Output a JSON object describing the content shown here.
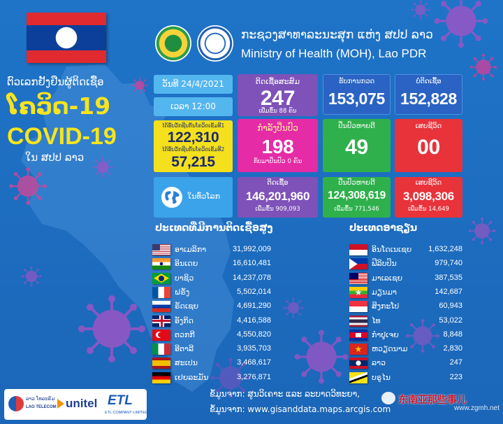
{
  "header": {
    "title_lo": "ກະຊວງສາທາລະນະສຸກ ແຫ່ງ ສປປ ລາວ",
    "title_en": "Ministry of Health (MOH), Lao PDR"
  },
  "intro": {
    "headline": "ຕົວເລກຢັ້ງຢືນຜູ້ຕິດເຊື້ອ",
    "covid_lo": "ໂຄວິດ-19",
    "covid_en": "COVID-19",
    "location": "ໃນ ສປປ ລາວ"
  },
  "report": {
    "date": "ວັນທີ 24/4/2021",
    "time": "ເວລາ 12:00"
  },
  "vaccine": {
    "dose1_label": "ໄດ້ຮັບວັກຊີນກັນໂຄວິດເຂັມທີ1",
    "dose1_value": "122,310",
    "dose2_label": "ໄດ້ຮັບວັກຊີນກັນໂຄວິດເຂັມທີ2",
    "dose2_value": "57,215"
  },
  "laos": {
    "cumulative": {
      "label": "ຕິດເຊື້ອສະສົມ",
      "value": "247",
      "note": "ເພີ່ມຂຶ້ນ 88 ຄົນ"
    },
    "treating": {
      "label": "ກຳລັງປິ່ນປົວ",
      "value": "198",
      "note": "ກັບມາປິ່ນປົວ 0 ຄົນ"
    },
    "tested": {
      "label": "ຮັບການກວດ",
      "value": "153,075"
    },
    "negative": {
      "label": "ບໍ່ຕິດເຊື້ອ",
      "value": "152,828"
    },
    "recovered": {
      "label": "ປິ່ນປົວຫາຍດີ",
      "value": "49"
    },
    "deaths": {
      "label": "ເສຍຊີວິດ",
      "value": "00"
    }
  },
  "world": {
    "label": "ໃນທົ່ວໂລກ",
    "icon": "globe-icon",
    "infected": {
      "label": "ຕິດເຊື້ອ",
      "value": "146,201,960",
      "note": "ເພີ່ມຂຶ້ນ 909,093"
    },
    "recovered": {
      "label": "ປິ່ນປົວຫາຍດີ",
      "value": "124,308,619",
      "note": "ເພີ່ມຂຶ້ນ 771,546"
    },
    "deaths": {
      "label": "ເສຍຊີວິດ",
      "value": "3,098,306",
      "note": "ເພີ່ມຂຶ້ນ 14,649"
    }
  },
  "top_countries": {
    "title": "ປະເທດທີ່ມີການຕິດເຊື້ອສູງ",
    "rows": [
      {
        "flag": "usa",
        "name": "ອາເມລິກາ",
        "value": "31,992,009"
      },
      {
        "flag": "india",
        "name": "ອິນເດຍ",
        "value": "16,610,481"
      },
      {
        "flag": "brazil",
        "name": "ບາຊິວ",
        "value": "14,237,078"
      },
      {
        "flag": "france",
        "name": "ຝຣັ່ງ",
        "value": "5,502,014"
      },
      {
        "flag": "russia",
        "name": "ຣັດເຊຍ",
        "value": "4,691,290"
      },
      {
        "flag": "uk",
        "name": "ອັງກິດ",
        "value": "4,416,588"
      },
      {
        "flag": "turkey",
        "name": "ຕວກກີ",
        "value": "4,550,820"
      },
      {
        "flag": "italy",
        "name": "ອີຕາລີ",
        "value": "3,935,703"
      },
      {
        "flag": "spain",
        "name": "ສະເປນ",
        "value": "3,468,617"
      },
      {
        "flag": "germany",
        "name": "ເຢຍລະມັນ",
        "value": "3,276,871"
      }
    ]
  },
  "asean": {
    "title": "ປະເທດອາຊຽນ",
    "rows": [
      {
        "flag": "indonesia",
        "name": "ອິນໂດເນເຊຍ",
        "value": "1,632,248"
      },
      {
        "flag": "philippines",
        "name": "ຟີລິບປິນ",
        "value": "979,740"
      },
      {
        "flag": "malaysia",
        "name": "ມາເລເຊຍ",
        "value": "387,535"
      },
      {
        "flag": "myanmar",
        "name": "ມຽນມາ",
        "value": "142,687"
      },
      {
        "flag": "singapore",
        "name": "ສິງກະໂປ",
        "value": "60,943"
      },
      {
        "flag": "thailand",
        "name": "ໄທ",
        "value": "53,022"
      },
      {
        "flag": "cambodia",
        "name": "ກຳປູເຈຍ",
        "value": "8,848"
      },
      {
        "flag": "vietnam",
        "name": "ຫວຽດນາມ",
        "value": "2,830"
      },
      {
        "flag": "laos",
        "name": "ລາວ",
        "value": "247"
      },
      {
        "flag": "brunei",
        "name": "ບຣູໄນ",
        "value": "223"
      }
    ]
  },
  "sources": {
    "line1": "ຂໍ້ມູນຈາກ: ສູນວິເຄາະ ແລະ ລະບາດວິທະຍາ,",
    "line2": "ຂໍ້ມູນຈາກ: www.gisanddata.maps.arcgis.com"
  },
  "sponsors": {
    "laotel_lo": "ລາວ ໂທລະຄົມ",
    "laotel_en": "LAO TELECOM",
    "unitel": "unitel",
    "etl": "ETL",
    "etl_sub": "ETL COMPANY LIMITED"
  },
  "watermark": {
    "channel": "东南亚那些事儿",
    "site": "www.zgmh.net"
  },
  "colors": {
    "background": "#1e70c6",
    "date_box": "#54b6ef",
    "vaccine_box": "#f4e01c",
    "cumulative_box": "#7e52b8",
    "treating_box": "#e52ba6",
    "tested_box": "#2a63c3",
    "recovered_box": "#2fb04c",
    "deaths_box": "#e8333b",
    "title_yellow": "#f7e41d",
    "virus": "#9a55c6"
  }
}
